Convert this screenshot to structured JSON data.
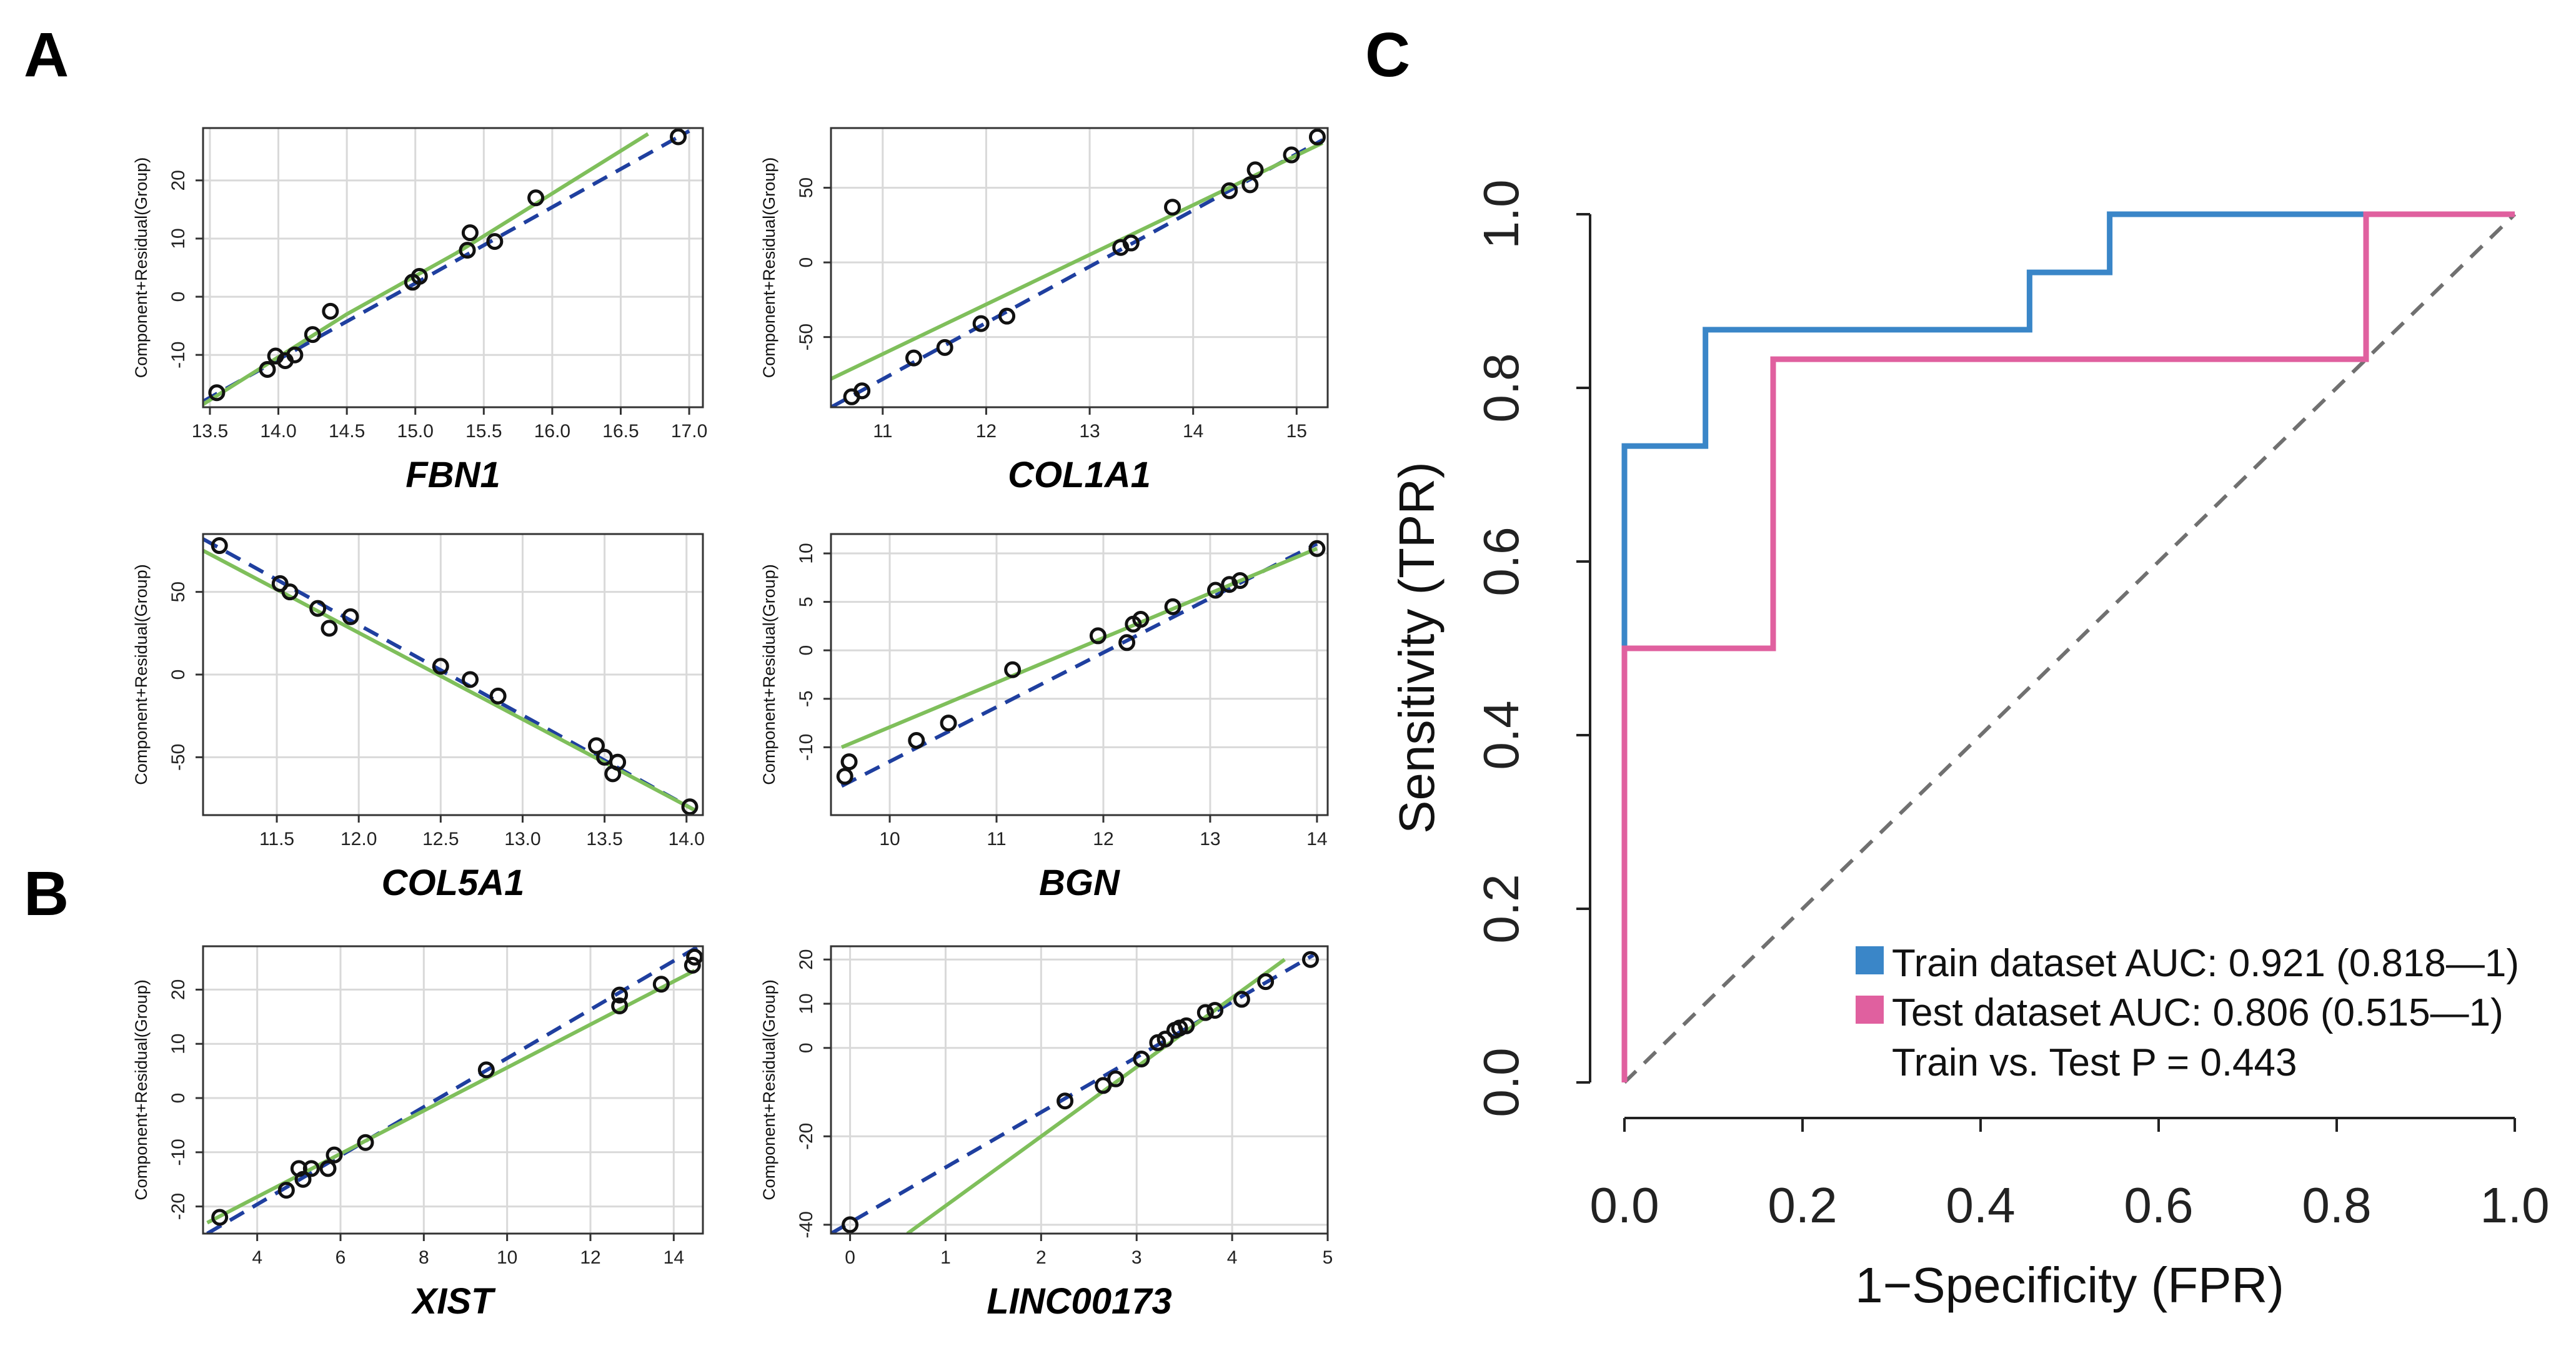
{
  "panels": {
    "a": "A",
    "b": "B",
    "c": "C"
  },
  "colors": {
    "fit_line": "#7fbf5b",
    "ref_line": "#1f3f9f",
    "train": "#3a86c8",
    "test": "#e0609f",
    "diagonal": "#707070"
  },
  "cr_ylabel": "Component+Residual(Group)",
  "chart_data": [
    {
      "type": "scatter",
      "gene": "FBN1",
      "xlabel": "FBN1",
      "ylabel": "Component+Residual(Group)",
      "xlim": [
        13.45,
        17.1
      ],
      "ylim": [
        -19,
        29
      ],
      "xticks": [
        "13.5",
        "14.0",
        "14.5",
        "15.0",
        "15.5",
        "16.0",
        "16.5",
        "17.0"
      ],
      "yticks": [
        "-10",
        "0",
        "10",
        "20"
      ],
      "x": [
        13.55,
        13.92,
        13.98,
        14.05,
        14.12,
        14.25,
        14.38,
        14.98,
        15.03,
        15.38,
        15.4,
        15.58,
        15.88,
        16.92
      ],
      "y": [
        -16.5,
        -12.5,
        -10.2,
        -11,
        -10,
        -6.5,
        -2.5,
        2.5,
        3.5,
        8,
        11,
        9.5,
        17,
        27.5
      ],
      "fit": [
        [
          13.45,
          -18.5
        ],
        [
          14.5,
          -3
        ],
        [
          15.3,
          7.5
        ],
        [
          16.7,
          28
        ]
      ],
      "ref": [
        [
          13.45,
          -18
        ],
        [
          17.0,
          28.5
        ]
      ]
    },
    {
      "type": "scatter",
      "gene": "COL1A1",
      "xlabel": "COL1A1",
      "ylabel": "Component+Residual(Group)",
      "xlim": [
        10.5,
        15.3
      ],
      "ylim": [
        -97,
        90
      ],
      "xticks": [
        "11",
        "12",
        "13",
        "14",
        "15"
      ],
      "yticks": [
        "-50",
        "0",
        "50"
      ],
      "x": [
        10.7,
        10.8,
        11.3,
        11.6,
        11.95,
        12.2,
        13.3,
        13.4,
        13.8,
        14.35,
        14.55,
        14.6,
        14.95,
        15.2
      ],
      "y": [
        -90,
        -86,
        -64,
        -57,
        -41,
        -36,
        10,
        13,
        37,
        48,
        52,
        62,
        72,
        84
      ],
      "fit": [
        [
          10.5,
          -78
        ],
        [
          15.25,
          80
        ]
      ],
      "ref": [
        [
          10.5,
          -97
        ],
        [
          15.25,
          82
        ]
      ]
    },
    {
      "type": "scatter",
      "gene": "COL5A1",
      "xlabel": "COL5A1",
      "ylabel": "Component+Residual(Group)",
      "xlim": [
        11.05,
        14.1
      ],
      "ylim": [
        -85,
        85
      ],
      "xticks": [
        "11.5",
        "12.0",
        "12.5",
        "13.0",
        "13.5",
        "14.0"
      ],
      "yticks": [
        "-50",
        "0",
        "50"
      ],
      "x": [
        11.15,
        11.52,
        11.58,
        11.75,
        11.82,
        11.95,
        12.5,
        12.68,
        12.85,
        13.45,
        13.5,
        13.55,
        13.58,
        14.02
      ],
      "y": [
        78,
        55,
        50,
        40,
        28,
        35,
        5,
        -3,
        -13,
        -43,
        -50,
        -60,
        -53,
        -80
      ],
      "fit": [
        [
          11.05,
          75
        ],
        [
          14.05,
          -82
        ]
      ],
      "ref": [
        [
          11.05,
          82
        ],
        [
          14.05,
          -82
        ]
      ]
    },
    {
      "type": "scatter",
      "gene": "BGN",
      "xlabel": "BGN",
      "ylabel": "Component+Residual(Group)",
      "xlim": [
        9.45,
        14.1
      ],
      "ylim": [
        -17,
        12
      ],
      "xticks": [
        "10",
        "11",
        "12",
        "13",
        "14"
      ],
      "yticks": [
        "-10",
        "-5",
        "0",
        "5",
        "10"
      ],
      "x": [
        9.58,
        9.62,
        10.25,
        10.55,
        11.15,
        11.95,
        12.22,
        12.28,
        12.35,
        12.65,
        13.05,
        13.18,
        13.28,
        14.0
      ],
      "y": [
        -13,
        -11.5,
        -9.3,
        -7.5,
        -2,
        1.5,
        0.8,
        2.7,
        3.2,
        4.5,
        6.2,
        6.8,
        7.2,
        10.5
      ],
      "fit": [
        [
          9.55,
          -10
        ],
        [
          14.0,
          10.5
        ]
      ],
      "ref": [
        [
          9.55,
          -14
        ],
        [
          14.0,
          11
        ]
      ]
    },
    {
      "type": "scatter",
      "gene": "XIST",
      "xlabel": "XIST",
      "ylabel": "Component+Residual(Group)",
      "xlim": [
        2.7,
        14.7
      ],
      "ylim": [
        -25,
        28
      ],
      "xticks": [
        "4",
        "6",
        "8",
        "10",
        "12",
        "14"
      ],
      "yticks": [
        "-20",
        "-10",
        "0",
        "10",
        "20"
      ],
      "x": [
        3.1,
        4.7,
        5.0,
        5.1,
        5.3,
        5.7,
        5.85,
        6.6,
        9.5,
        12.7,
        12.7,
        13.7,
        14.45,
        14.5
      ],
      "y": [
        -22,
        -17,
        -13,
        -15,
        -13,
        -13,
        -10.5,
        -8.2,
        5.2,
        17,
        19,
        21,
        24.5,
        26
      ],
      "fit": [
        [
          2.8,
          -23
        ],
        [
          14.5,
          23.5
        ]
      ],
      "ref": [
        [
          2.8,
          -25
        ],
        [
          14.6,
          28
        ]
      ]
    },
    {
      "type": "scatter",
      "gene": "LINC00173",
      "xlabel": "LINC00173",
      "ylabel": "Component+Residual(Group)",
      "xlim": [
        -0.2,
        5.0
      ],
      "ylim": [
        -42,
        23
      ],
      "xticks": [
        "0",
        "1",
        "2",
        "3",
        "4",
        "5"
      ],
      "yticks": [
        "-40",
        "-20",
        "0",
        "10",
        "20"
      ],
      "x": [
        0.0,
        2.25,
        2.65,
        2.78,
        3.05,
        3.22,
        3.3,
        3.4,
        3.45,
        3.52,
        3.72,
        3.82,
        4.1,
        4.35,
        4.82
      ],
      "y": [
        -40,
        -12,
        -8.5,
        -7,
        -2.5,
        1.2,
        2,
        4,
        4.5,
        5,
        8,
        8.5,
        11,
        15,
        20
      ],
      "fit": [
        [
          0.6,
          -42
        ],
        [
          4.55,
          20
        ]
      ],
      "ref": [
        [
          -0.2,
          -42
        ],
        [
          4.85,
          21
        ]
      ]
    },
    {
      "type": "line",
      "title": "",
      "xlabel": "1−Specificity (FPR)",
      "ylabel": "Sensitivity (TPR)",
      "xlim": [
        0,
        1
      ],
      "ylim": [
        0,
        1
      ],
      "xticks": [
        "0.0",
        "0.2",
        "0.4",
        "0.6",
        "0.8",
        "1.0"
      ],
      "yticks": [
        "0.0",
        "0.2",
        "0.4",
        "0.6",
        "0.8",
        "1.0"
      ],
      "series": [
        {
          "name": "Train dataset AUC: 0.921 (0.818—1)",
          "color": "#3a86c8",
          "x": [
            0,
            0,
            0.091,
            0.091,
            0.455,
            0.455,
            0.545,
            0.545,
            1.0
          ],
          "y": [
            0,
            0.733,
            0.733,
            0.867,
            0.867,
            0.933,
            0.933,
            1.0,
            1.0
          ]
        },
        {
          "name": "Test dataset AUC: 0.806 (0.515—1)",
          "color": "#e0609f",
          "x": [
            0,
            0,
            0.167,
            0.167,
            0.833,
            0.833,
            1.0
          ],
          "y": [
            0,
            0.5,
            0.5,
            0.833,
            0.833,
            1.0,
            1.0
          ]
        }
      ],
      "legend_note": "Train vs. Test P = 0.443",
      "legend_position": "bottom-right"
    }
  ]
}
